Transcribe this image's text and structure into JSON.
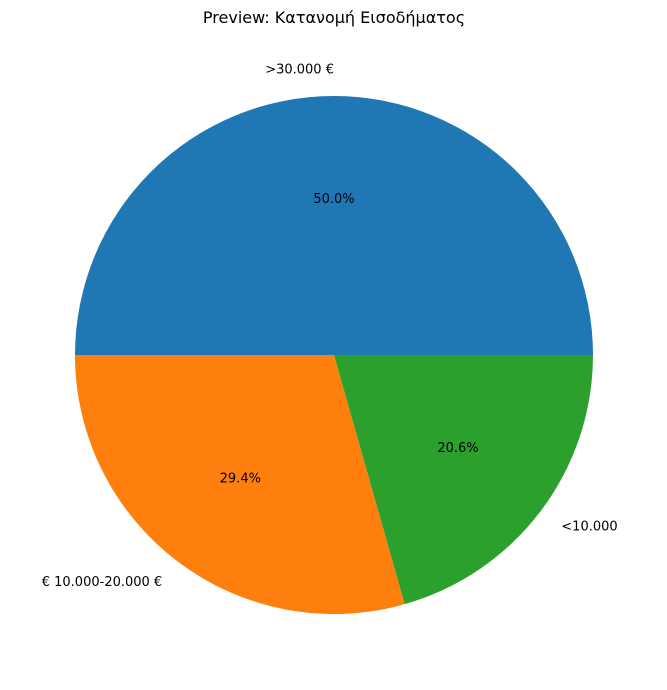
{
  "chart_data": {
    "type": "pie",
    "title": "Preview: Κατανομή Εισοδήματος",
    "categories": [
      ">30.000 €",
      "€  10.000-20.000 €",
      "<10.000"
    ],
    "values": [
      50.0,
      29.4,
      20.6
    ],
    "pct_labels": [
      "50.0%",
      "29.4%",
      "20.6%"
    ],
    "colors": [
      "#1f77b4",
      "#ff7f0e",
      "#2ca02c"
    ],
    "start_angle_deg": 0,
    "direction": "counterclockwise",
    "legend": "none"
  }
}
